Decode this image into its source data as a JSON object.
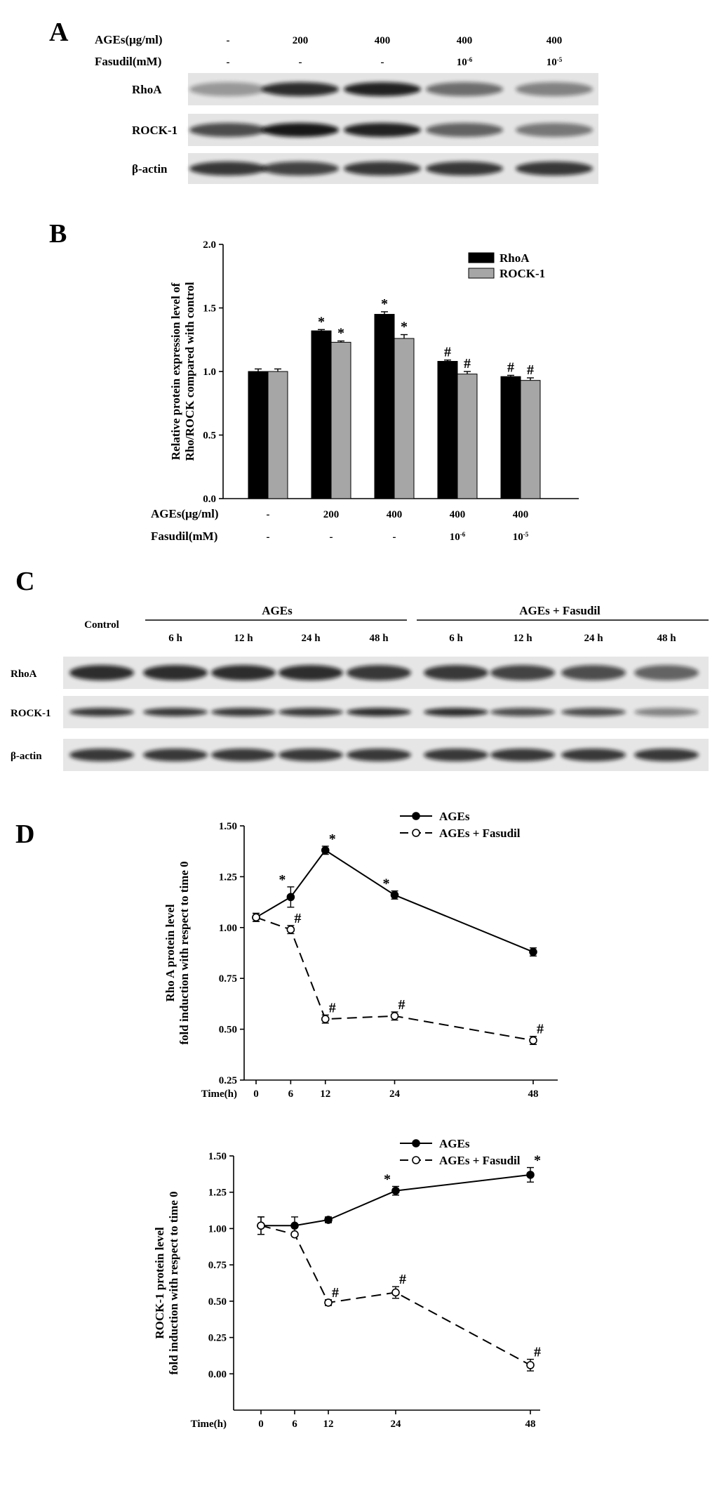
{
  "panels": [
    "A",
    "B",
    "C",
    "D"
  ],
  "blot_a": {
    "rows": [
      "AGEs(μg/ml)",
      "Fasudil(mM)"
    ],
    "ages": [
      "-",
      "200",
      "400",
      "400",
      "400"
    ],
    "fasudil": [
      "-",
      "-",
      "-",
      "10-6",
      "10-5"
    ],
    "bands": [
      "RhoA",
      "ROCK-1",
      "β-actin"
    ]
  },
  "blot_c": {
    "control_label": "Control",
    "group1": "AGEs",
    "group2": "AGEs + Fasudil",
    "times": [
      "6 h",
      "12 h",
      "24 h",
      "48 h",
      "6 h",
      "12 h",
      "24 h",
      "48 h"
    ],
    "bands": [
      "RhoA",
      "ROCK-1",
      "β-actin"
    ]
  },
  "colors": {
    "rhoa": "#000000",
    "rock": "#a6a6a6"
  },
  "chart_data": [
    {
      "type": "bar",
      "panel": "B",
      "ylabel": [
        "Relative protein expression level of",
        "Rho/ROCK compared with control"
      ],
      "ylim": [
        0,
        2.0
      ],
      "yticks": [
        "0.0",
        "0.5",
        "1.0",
        "1.5",
        "2.0"
      ],
      "categories_rows": [
        {
          "label": "AGEs(μg/ml)",
          "values": [
            "-",
            "200",
            "400",
            "400",
            "400"
          ]
        },
        {
          "label": "Fasudil(mM)",
          "values": [
            "-",
            "-",
            "-",
            "10-6",
            "10-5"
          ]
        }
      ],
      "series": [
        {
          "name": "RhoA",
          "values": [
            1.0,
            1.32,
            1.45,
            1.08,
            0.96
          ],
          "errors": [
            0.02,
            0.01,
            0.02,
            0.01,
            0.01
          ],
          "marks": [
            "",
            "*",
            "*",
            "#",
            "#"
          ]
        },
        {
          "name": "ROCK-1",
          "values": [
            1.0,
            1.23,
            1.26,
            0.98,
            0.93
          ],
          "errors": [
            0.02,
            0.01,
            0.03,
            0.02,
            0.02
          ],
          "marks": [
            "",
            "*",
            "*",
            "#",
            "#"
          ]
        }
      ],
      "legend": "top-right"
    },
    {
      "type": "line",
      "panel": "D-top",
      "ylabel": [
        "Rho A protein level",
        "fold induction with respect to time 0"
      ],
      "xlabel": "Time(h)",
      "x": [
        0,
        6,
        12,
        24,
        48
      ],
      "ylim": [
        0.25,
        1.5
      ],
      "yticks": [
        "0.25",
        "0.50",
        "0.75",
        "1.00",
        "1.25",
        "1.50"
      ],
      "series": [
        {
          "name": "AGEs",
          "values": [
            1.05,
            1.15,
            1.38,
            1.16,
            0.88
          ],
          "errors": [
            0.02,
            0.05,
            0.02,
            0.02,
            0.02
          ],
          "marks": [
            "",
            "*",
            "*",
            "*",
            ""
          ]
        },
        {
          "name": "AGEs + Fasudil",
          "values": [
            1.05,
            0.99,
            0.55,
            0.565,
            0.445
          ],
          "errors": [
            0.02,
            0.02,
            0.02,
            0.02,
            0.02
          ],
          "marks": [
            "",
            "#",
            "#",
            "#",
            "#"
          ]
        }
      ],
      "legend": "top-right"
    },
    {
      "type": "line",
      "panel": "D-bottom",
      "ylabel": [
        "ROCK-1 protein level",
        "fold induction with respect to time 0"
      ],
      "xlabel": "Time(h)",
      "x": [
        0,
        6,
        12,
        24,
        48
      ],
      "ylim": [
        -0.25,
        1.5
      ],
      "yticks": [
        "0.00",
        "0.25",
        "0.50",
        "0.75",
        "1.00",
        "1.25",
        "1.50"
      ],
      "series": [
        {
          "name": "AGEs",
          "values": [
            1.02,
            1.02,
            1.06,
            1.26,
            1.37
          ],
          "errors": [
            0.06,
            0.06,
            0.02,
            0.03,
            0.05
          ],
          "marks": [
            "",
            "",
            "",
            "*",
            "*"
          ]
        },
        {
          "name": "AGEs + Fasudil",
          "values": [
            1.02,
            0.96,
            0.49,
            0.56,
            0.06
          ],
          "errors": [
            0.06,
            0.01,
            0.02,
            0.04,
            0.04
          ],
          "marks": [
            "",
            "",
            "#",
            "#",
            "#"
          ]
        }
      ],
      "legend": "top-right"
    }
  ]
}
